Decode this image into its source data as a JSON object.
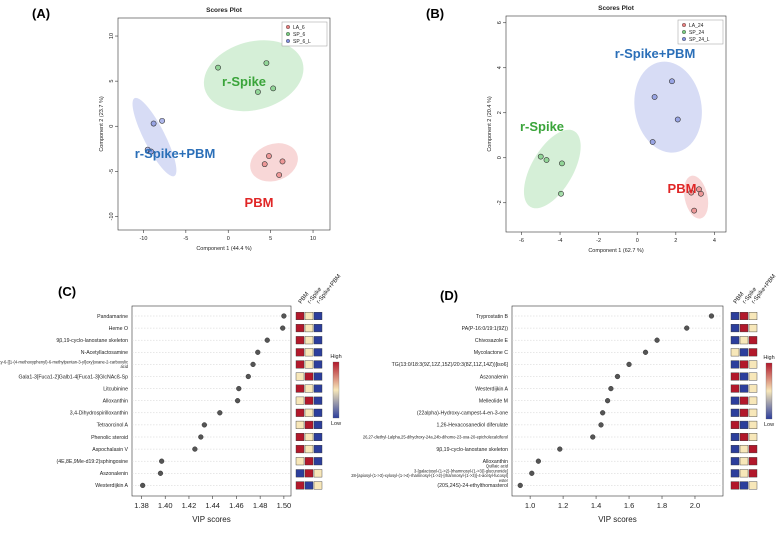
{
  "panels": {
    "A": "(A)",
    "B": "(B)",
    "C": "(C)",
    "D": "(D)"
  },
  "colors": {
    "LA": "#e04a4a",
    "SP": "#3fb54a",
    "SPL": "#4b5fd1",
    "vip_high": "#b2182b",
    "vip_mid": "#f7e7b9",
    "vip_low": "#2c3e9c"
  },
  "chart_data": [
    {
      "type": "scatter",
      "title": "Scores Plot",
      "xlabel": "Component 1 (44.4 %)",
      "ylabel": "Component 2 (23.7 %)",
      "xlim": [
        -13,
        12
      ],
      "ylim": [
        -11.5,
        12
      ],
      "xticks": [
        -10,
        -5,
        0,
        5,
        10
      ],
      "yticks": [
        -10,
        -5,
        0,
        5,
        10
      ],
      "legend": [
        "LA_6",
        "SP_6",
        "SP_6_L"
      ],
      "legend_position": "top-right",
      "groups": [
        {
          "label": "r-Spike",
          "color": "SP",
          "points": [
            [
              -1.2,
              6.5
            ],
            [
              4.5,
              7.0
            ],
            [
              3.5,
              3.8
            ],
            [
              5.3,
              4.2
            ]
          ],
          "ellipse": {
            "cx": 3.0,
            "cy": 5.6,
            "rx": 5.8,
            "ry": 3.9,
            "angle": -15
          }
        },
        {
          "label": "r-Spike+PBM",
          "color": "SPL",
          "points": [
            [
              -8.8,
              0.3
            ],
            [
              -7.8,
              0.6
            ],
            [
              -9.5,
              -2.6
            ],
            [
              -9.1,
              -2.8
            ]
          ],
          "ellipse": {
            "cx": -8.7,
            "cy": -1.2,
            "rx": 5.0,
            "ry": 1.2,
            "angle": 63
          }
        },
        {
          "label": "PBM",
          "color": "LA",
          "points": [
            [
              4.8,
              -3.3
            ],
            [
              4.3,
              -4.2
            ],
            [
              6.4,
              -3.9
            ],
            [
              6.0,
              -5.4
            ]
          ],
          "ellipse": {
            "cx": 5.4,
            "cy": -4.0,
            "rx": 2.8,
            "ry": 2.1,
            "angle": -20
          }
        }
      ],
      "annotations": [
        "r-Spike",
        "r-Spike+PBM",
        "PBM"
      ]
    },
    {
      "type": "scatter",
      "title": "Scores Plot",
      "xlabel": "Component 1 (62.7 %)",
      "ylabel": "Component 2 (20.4 %)",
      "xlim": [
        -6.8,
        4.6
      ],
      "ylim": [
        -3.3,
        6.3
      ],
      "xticks": [
        -6,
        -4,
        -2,
        0,
        2,
        4
      ],
      "yticks": [
        -2,
        0,
        2,
        4,
        6
      ],
      "legend": [
        "LA_24",
        "SP_24",
        "SP_24_L"
      ],
      "legend_position": "top-right",
      "groups": [
        {
          "label": "r-Spike",
          "color": "SP",
          "points": [
            [
              -5.0,
              0.05
            ],
            [
              -4.7,
              -0.1
            ],
            [
              -3.9,
              -0.25
            ],
            [
              -3.95,
              -1.6
            ]
          ],
          "ellipse": {
            "cx": -4.4,
            "cy": -0.5,
            "rx": 2.1,
            "ry": 1.0,
            "angle": -60
          }
        },
        {
          "label": "r-Spike+PBM",
          "color": "SPL",
          "points": [
            [
              1.8,
              3.4
            ],
            [
              0.9,
              2.7
            ],
            [
              2.1,
              1.7
            ],
            [
              0.8,
              0.7
            ]
          ],
          "ellipse": {
            "cx": 1.6,
            "cy": 2.25,
            "rx": 2.2,
            "ry": 1.6,
            "angle": 80
          }
        },
        {
          "label": "PBM",
          "color": "LA",
          "points": [
            [
              3.2,
              -1.4
            ],
            [
              3.3,
              -1.6
            ],
            [
              2.8,
              -1.55
            ],
            [
              2.95,
              -2.35
            ]
          ],
          "ellipse": {
            "cx": 3.05,
            "cy": -1.75,
            "rx": 1.05,
            "ry": 0.55,
            "angle": 78
          }
        }
      ],
      "annotations": [
        "r-Spike+PBM",
        "r-Spike",
        "PBM"
      ]
    },
    {
      "type": "scatter",
      "title": "",
      "xlabel": "VIP scores",
      "xlim": [
        1.372,
        1.506
      ],
      "xticks": [
        1.38,
        1.4,
        1.42,
        1.44,
        1.46,
        1.48,
        1.5
      ],
      "columns": [
        "PBM",
        "r-Spike",
        "r-Spike+PBM"
      ],
      "legend": [
        "High",
        "Low"
      ],
      "items": [
        {
          "label": "Pandamarine",
          "value": 1.5,
          "heat": [
            "H",
            "M",
            "L"
          ]
        },
        {
          "label": "Heme O",
          "value": 1.499,
          "heat": [
            "H",
            "M",
            "L"
          ]
        },
        {
          "label": "9β,19-cyclo-lanostane skeleton",
          "value": 1.486,
          "heat": [
            "H",
            "M",
            "L"
          ]
        },
        {
          "label": "N-Acetyllactosamine",
          "value": 1.478,
          "heat": [
            "H",
            "M",
            "L"
          ]
        },
        {
          "label": "3,4,5-trihydroxy-6-[[1-(4-methoxyphenyl)-6-methylpentan-3-yl]oxy]oxane-2-carboxylic acid",
          "value": 1.474,
          "heat": [
            "H",
            "M",
            "L"
          ]
        },
        {
          "label": "Gala1-3[Fuca1-2]Galb1-4[Fuca1-3]GlcNAcß-Sp",
          "value": 1.47,
          "heat": [
            "M",
            "H",
            "L"
          ]
        },
        {
          "label": "Litcubinine",
          "value": 1.462,
          "heat": [
            "H",
            "M",
            "L"
          ]
        },
        {
          "label": "Alloxanthin",
          "value": 1.461,
          "heat": [
            "M",
            "H",
            "L"
          ]
        },
        {
          "label": "3,4-Dihydrospirilloxanthin",
          "value": 1.446,
          "heat": [
            "H",
            "M",
            "L"
          ]
        },
        {
          "label": "Tetraorcinol A",
          "value": 1.433,
          "heat": [
            "M",
            "H",
            "L"
          ]
        },
        {
          "label": "Phenolic steroid",
          "value": 1.43,
          "heat": [
            "H",
            "M",
            "L"
          ]
        },
        {
          "label": "Aspochalasin V",
          "value": 1.425,
          "heat": [
            "H",
            "M",
            "L"
          ]
        },
        {
          "label": "(4E,8E,9Me-d19:2)sphingosine",
          "value": 1.397,
          "heat": [
            "M",
            "H",
            "L"
          ]
        },
        {
          "label": "Aszonalenin",
          "value": 1.396,
          "heat": [
            "L",
            "H",
            "M"
          ]
        },
        {
          "label": "Westerdijkin A",
          "value": 1.381,
          "heat": [
            "H",
            "L",
            "M"
          ]
        }
      ]
    },
    {
      "type": "scatter",
      "title": "",
      "xlabel": "VIP scores",
      "xlim": [
        0.89,
        2.17
      ],
      "xticks": [
        1.0,
        1.2,
        1.4,
        1.6,
        1.8,
        2.0
      ],
      "columns": [
        "PBM",
        "r-Spike",
        "r-Spike+PBM"
      ],
      "legend": [
        "High",
        "Low"
      ],
      "items": [
        {
          "label": "Tryprostatin B",
          "value": 2.1,
          "heat": [
            "L",
            "H",
            "M"
          ]
        },
        {
          "label": "PA(P-16:0/19:1(9Z))",
          "value": 1.95,
          "heat": [
            "L",
            "H",
            "M"
          ]
        },
        {
          "label": "Chivosazole E",
          "value": 1.77,
          "heat": [
            "L",
            "M",
            "H"
          ]
        },
        {
          "label": "Mycolactone C",
          "value": 1.7,
          "heat": [
            "M",
            "L",
            "H"
          ]
        },
        {
          "label": "TG(13:0/18:3(9Z,12Z,15Z)/20:3(8Z,11Z,14Z))[iso6]",
          "value": 1.6,
          "heat": [
            "L",
            "H",
            "M"
          ]
        },
        {
          "label": "Aszonalenin",
          "value": 1.53,
          "heat": [
            "H",
            "L",
            "M"
          ]
        },
        {
          "label": "Westerdijkin A",
          "value": 1.49,
          "heat": [
            "H",
            "L",
            "M"
          ]
        },
        {
          "label": "Melleolide M",
          "value": 1.47,
          "heat": [
            "L",
            "H",
            "M"
          ]
        },
        {
          "label": "(22alpha)-Hydroxy-campest-4-en-3-one",
          "value": 1.44,
          "heat": [
            "L",
            "H",
            "M"
          ]
        },
        {
          "label": "1,26-Hexacosanediol diferulate",
          "value": 1.43,
          "heat": [
            "H",
            "L",
            "M"
          ]
        },
        {
          "label": "26,27-diethyl-1alpha,25-dihydroxy-24a,24b-dihomo-23-oxa-20-epicholecalciferol",
          "value": 1.38,
          "heat": [
            "L",
            "H",
            "M"
          ]
        },
        {
          "label": "9β,19-cyclo-lanostane skeleton",
          "value": 1.18,
          "heat": [
            "L",
            "M",
            "H"
          ]
        },
        {
          "label": "Alloxanthin",
          "value": 1.05,
          "heat": [
            "L",
            "M",
            "H"
          ]
        },
        {
          "label": "Quillaic acid 3-[galactosyl-(1->2)-[rhamnosyl-(1->3)]-glucuronide] 28-[apiosyl-(1->3)-xylosyl-(1->4)-rhamnosyl-(1->2)-[rhamnosyl-(1->3)]-4-acetyl-fucosyl] ester",
          "value": 1.01,
          "heat": [
            "L",
            "M",
            "H"
          ]
        },
        {
          "label": "(20S,24S)-24-ethylthomasterol",
          "value": 0.94,
          "heat": [
            "H",
            "L",
            "M"
          ]
        }
      ]
    }
  ]
}
